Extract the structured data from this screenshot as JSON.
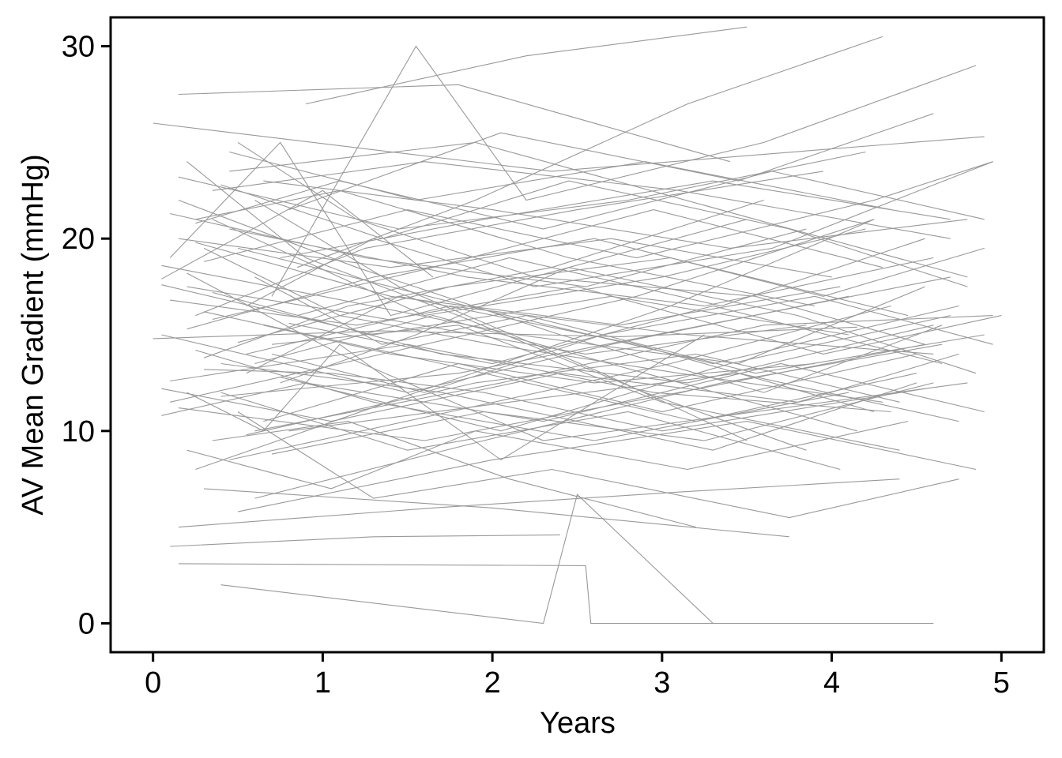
{
  "chart_data": {
    "type": "line",
    "title": "",
    "xlabel": "Years",
    "ylabel": "AV Mean Gradient (mmHg)",
    "xlim": [
      -0.25,
      5.25
    ],
    "ylim": [
      -1.5,
      31.5
    ],
    "x_ticks": [
      0,
      1,
      2,
      3,
      4,
      5
    ],
    "x_tick_labels": [
      "0",
      "1",
      "2",
      "3",
      "4",
      "5"
    ],
    "y_ticks": [
      0,
      10,
      20,
      30
    ],
    "y_tick_labels": [
      "0",
      "10",
      "20",
      "30"
    ],
    "grid": false,
    "legend": "none",
    "line_color": "#999999",
    "series": [
      {
        "x": [
          0.05,
          1.0,
          1.65
        ],
        "y": [
          17.9,
          22.5,
          18.0
        ]
      },
      {
        "x": [
          0.0,
          2.35,
          4.9
        ],
        "y": [
          26.0,
          23.5,
          25.3
        ]
      },
      {
        "x": [
          0.1,
          1.3,
          2.4
        ],
        "y": [
          4.0,
          4.5,
          4.6
        ]
      },
      {
        "x": [
          0.4,
          2.3,
          2.5,
          3.3
        ],
        "y": [
          2.0,
          0.0,
          6.7,
          0.0
        ]
      },
      {
        "x": [
          0.15,
          2.55,
          2.58,
          4.6
        ],
        "y": [
          3.1,
          3.0,
          0.0,
          0.0
        ]
      },
      {
        "x": [
          0.1,
          0.75,
          1.4,
          3.5
        ],
        "y": [
          19.0,
          25.0,
          16.0,
          21.0
        ]
      },
      {
        "x": [
          0.2,
          1.1,
          2.3,
          4.8
        ],
        "y": [
          18.2,
          14.0,
          9.5,
          12.5
        ]
      },
      {
        "x": [
          0.3,
          1.05,
          1.95,
          3.0,
          4.55
        ],
        "y": [
          13.2,
          13.0,
          12.0,
          10.0,
          12.2
        ]
      },
      {
        "x": [
          0.05,
          1.5,
          2.7,
          4.1
        ],
        "y": [
          15.0,
          12.0,
          14.5,
          17.0
        ]
      },
      {
        "x": [
          0.2,
          0.65,
          1.1,
          2.05,
          3.25
        ],
        "y": [
          12.0,
          10.0,
          14.5,
          8.5,
          15.0
        ]
      },
      {
        "x": [
          0.15,
          1.2,
          2.4,
          3.6,
          4.65
        ],
        "y": [
          22.0,
          18.5,
          15.0,
          12.0,
          15.5
        ]
      },
      {
        "x": [
          0.25,
          1.55,
          3.05,
          4.25
        ],
        "y": [
          8.0,
          12.0,
          16.5,
          21.0
        ]
      },
      {
        "x": [
          0.35,
          1.6,
          3.0,
          4.2
        ],
        "y": [
          21.0,
          16.0,
          18.0,
          20.5
        ]
      },
      {
        "x": [
          0.5,
          1.3,
          2.35,
          3.75,
          4.75
        ],
        "y": [
          11.0,
          6.5,
          8.0,
          5.5,
          7.5
        ]
      },
      {
        "x": [
          0.6,
          1.45,
          2.65,
          3.5
        ],
        "y": [
          22.0,
          17.5,
          13.0,
          9.5
        ]
      },
      {
        "x": [
          0.45,
          1.9,
          3.55,
          4.8
        ],
        "y": [
          23.5,
          25.0,
          21.0,
          18.0
        ]
      },
      {
        "x": [
          0.15,
          1.8,
          3.4
        ],
        "y": [
          27.5,
          28.0,
          24.0
        ]
      },
      {
        "x": [
          0.3,
          1.1,
          2.0,
          3.1,
          4.3
        ],
        "y": [
          19.5,
          16.0,
          14.5,
          13.0,
          11.5
        ]
      },
      {
        "x": [
          0.55,
          1.75,
          3.15,
          4.6
        ],
        "y": [
          14.0,
          16.5,
          15.0,
          14.0
        ]
      },
      {
        "x": [
          0.1,
          1.35,
          2.85,
          4.25
        ],
        "y": [
          11.5,
          14.0,
          17.0,
          21.0
        ]
      },
      {
        "x": [
          0.7,
          1.55,
          2.2,
          3.6,
          4.85
        ],
        "y": [
          17.0,
          30.0,
          22.0,
          25.0,
          29.0
        ]
      },
      {
        "x": [
          0.25,
          1.25,
          2.5,
          3.95
        ],
        "y": [
          16.0,
          19.5,
          21.5,
          23.5
        ]
      },
      {
        "x": [
          0.4,
          1.7,
          3.3,
          4.5
        ],
        "y": [
          13.5,
          12.0,
          9.0,
          12.5
        ]
      },
      {
        "x": [
          0.6,
          2.05,
          3.6,
          4.95
        ],
        "y": [
          10.0,
          12.5,
          15.5,
          16.0
        ]
      },
      {
        "x": [
          0.35,
          1.15,
          2.1,
          3.2
        ],
        "y": [
          9.5,
          10.5,
          7.5,
          5.0
        ]
      },
      {
        "x": [
          0.0,
          1.35,
          2.75,
          4.15
        ],
        "y": [
          14.8,
          15.2,
          14.9,
          15.4
        ]
      },
      {
        "x": [
          0.75,
          1.95,
          3.3,
          4.7
        ],
        "y": [
          19.0,
          21.0,
          23.0,
          21.0
        ]
      },
      {
        "x": [
          0.2,
          0.9,
          1.8,
          2.9,
          3.85
        ],
        "y": [
          24.0,
          19.0,
          16.0,
          12.0,
          9.0
        ]
      },
      {
        "x": [
          0.5,
          1.2,
          2.25,
          3.55,
          4.55
        ],
        "y": [
          25.0,
          21.0,
          18.0,
          17.0,
          14.5
        ]
      },
      {
        "x": [
          0.15,
          1.65,
          3.05,
          4.4
        ],
        "y": [
          5.0,
          6.0,
          6.8,
          7.5
        ]
      },
      {
        "x": [
          0.3,
          2.0,
          3.75
        ],
        "y": [
          7.0,
          6.0,
          4.5
        ]
      },
      {
        "x": [
          0.05,
          1.0,
          2.15,
          3.45,
          4.55
        ],
        "y": [
          18.6,
          17.0,
          15.0,
          13.5,
          17.5
        ]
      },
      {
        "x": [
          0.65,
          1.4,
          2.6,
          3.9
        ],
        "y": [
          15.5,
          14.0,
          12.5,
          13.5
        ]
      },
      {
        "x": [
          0.45,
          1.85,
          3.25,
          4.6
        ],
        "y": [
          20.5,
          18.0,
          16.5,
          19.0
        ]
      },
      {
        "x": [
          0.8,
          2.1,
          3.45,
          4.75
        ],
        "y": [
          10.0,
          11.5,
          13.0,
          10.5
        ]
      },
      {
        "x": [
          0.1,
          1.5,
          2.95,
          4.35
        ],
        "y": [
          12.6,
          14.5,
          12.0,
          11.0
        ]
      },
      {
        "x": [
          0.55,
          1.3,
          2.25,
          3.65,
          4.95
        ],
        "y": [
          16.5,
          20.0,
          17.5,
          19.5,
          24.0
        ]
      },
      {
        "x": [
          0.25,
          1.1,
          2.45,
          3.9
        ],
        "y": [
          21.0,
          22.5,
          19.0,
          16.5
        ]
      },
      {
        "x": [
          0.85,
          1.9,
          3.15,
          4.3
        ],
        "y": [
          18.5,
          22.0,
          27.0,
          30.5
        ]
      },
      {
        "x": [
          0.4,
          1.5,
          2.8,
          4.05
        ],
        "y": [
          12.0,
          9.0,
          11.0,
          8.0
        ]
      },
      {
        "x": [
          0.2,
          1.25,
          2.55,
          3.85
        ],
        "y": [
          17.5,
          16.0,
          14.0,
          15.5
        ]
      },
      {
        "x": [
          0.7,
          1.8,
          3.0,
          4.4
        ],
        "y": [
          14.5,
          15.5,
          11.5,
          9.0
        ]
      },
      {
        "x": [
          0.35,
          1.6,
          3.1,
          4.7
        ],
        "y": [
          22.5,
          24.0,
          22.5,
          20.0
        ]
      },
      {
        "x": [
          0.05,
          0.9,
          2.3,
          3.7,
          4.9
        ],
        "y": [
          10.8,
          12.5,
          10.5,
          13.5,
          11.0
        ]
      },
      {
        "x": [
          0.9,
          2.2,
          3.5
        ],
        "y": [
          27.0,
          29.5,
          31.0
        ]
      },
      {
        "x": [
          0.6,
          1.95,
          3.35,
          4.65
        ],
        "y": [
          6.5,
          9.5,
          12.5,
          14.5
        ]
      },
      {
        "x": [
          0.15,
          1.4,
          2.7,
          4.0
        ],
        "y": [
          20.0,
          18.5,
          20.0,
          18.0
        ]
      },
      {
        "x": [
          0.3,
          1.7,
          3.2,
          4.5
        ],
        "y": [
          16.2,
          13.5,
          10.5,
          13.0
        ]
      },
      {
        "x": [
          0.75,
          1.55,
          2.45,
          3.8,
          4.85
        ],
        "y": [
          12.5,
          15.0,
          18.5,
          16.0,
          13.0
        ]
      },
      {
        "x": [
          0.5,
          1.85,
          3.3,
          4.75
        ],
        "y": [
          19.5,
          16.5,
          13.5,
          16.5
        ]
      },
      {
        "x": [
          0.25,
          1.3,
          2.6,
          4.1
        ],
        "y": [
          14.2,
          11.5,
          9.5,
          12.0
        ]
      },
      {
        "x": [
          0.45,
          1.75,
          3.05,
          4.35
        ],
        "y": [
          8.5,
          11.0,
          13.5,
          16.5
        ]
      },
      {
        "x": [
          0.65,
          2.0,
          3.4,
          4.8
        ],
        "y": [
          23.0,
          21.5,
          19.5,
          21.0
        ]
      },
      {
        "x": [
          0.1,
          1.2,
          2.5,
          3.95,
          5.0
        ],
        "y": [
          16.8,
          15.5,
          17.5,
          14.0,
          16.0
        ]
      },
      {
        "x": [
          0.55,
          1.45,
          2.85,
          4.25
        ],
        "y": [
          13.0,
          17.0,
          14.5,
          11.0
        ]
      },
      {
        "x": [
          0.8,
          2.05,
          3.45,
          4.6
        ],
        "y": [
          21.5,
          25.5,
          23.0,
          26.5
        ]
      },
      {
        "x": [
          0.2,
          1.05,
          1.9,
          3.15,
          4.45
        ],
        "y": [
          9.0,
          7.0,
          10.0,
          8.0,
          10.5
        ]
      },
      {
        "x": [
          0.35,
          1.65,
          2.95,
          4.3
        ],
        "y": [
          15.8,
          18.5,
          21.5,
          18.5
        ]
      },
      {
        "x": [
          0.6,
          1.35,
          2.2,
          3.55,
          4.9
        ],
        "y": [
          18.0,
          14.5,
          16.0,
          13.0,
          15.0
        ]
      },
      {
        "x": [
          0.4,
          1.8,
          3.25,
          4.7
        ],
        "y": [
          11.8,
          13.0,
          15.5,
          18.0
        ]
      },
      {
        "x": [
          0.15,
          1.45,
          2.8,
          4.2
        ],
        "y": [
          23.2,
          20.5,
          22.0,
          24.5
        ]
      },
      {
        "x": [
          0.7,
          1.6,
          2.65,
          3.9,
          4.95
        ],
        "y": [
          14.0,
          12.0,
          15.0,
          17.0,
          14.5
        ]
      },
      {
        "x": [
          0.3,
          1.15,
          2.35,
          3.6
        ],
        "y": [
          13.8,
          16.5,
          18.5,
          22.0
        ]
      },
      {
        "x": [
          0.5,
          2.0,
          3.5,
          4.85
        ],
        "y": [
          5.8,
          8.5,
          10.5,
          8.0
        ]
      },
      {
        "x": [
          0.25,
          1.4,
          2.75,
          4.05
        ],
        "y": [
          19.8,
          17.0,
          15.5,
          17.5
        ]
      },
      {
        "x": [
          0.85,
          2.1,
          3.35,
          4.55
        ],
        "y": [
          16.0,
          19.0,
          16.5,
          20.0
        ]
      },
      {
        "x": [
          0.05,
          1.05,
          2.4,
          3.8,
          4.75
        ],
        "y": [
          12.2,
          10.5,
          13.0,
          11.5,
          14.0
        ]
      },
      {
        "x": [
          0.45,
          1.55,
          2.9,
          4.35
        ],
        "y": [
          24.5,
          22.0,
          24.0,
          21.5
        ]
      },
      {
        "x": [
          0.65,
          1.8,
          3.0,
          4.5
        ],
        "y": [
          10.5,
          13.5,
          11.0,
          14.0
        ]
      },
      {
        "x": [
          0.2,
          1.3,
          2.6,
          3.95,
          4.9
        ],
        "y": [
          15.3,
          18.0,
          20.0,
          17.0,
          19.5
        ]
      },
      {
        "x": [
          0.35,
          1.7,
          3.15,
          4.6
        ],
        "y": [
          17.2,
          14.0,
          12.5,
          15.5
        ]
      },
      {
        "x": [
          0.75,
          2.05,
          3.4,
          4.7
        ],
        "y": [
          12.8,
          10.0,
          13.5,
          16.0
        ]
      },
      {
        "x": [
          0.1,
          1.25,
          2.55,
          3.85
        ],
        "y": [
          21.3,
          19.0,
          17.5,
          20.5
        ]
      },
      {
        "x": [
          0.55,
          1.9,
          3.2,
          4.4
        ],
        "y": [
          9.8,
          12.5,
          14.0,
          11.5
        ]
      },
      {
        "x": [
          0.3,
          1.5,
          2.85,
          4.25,
          4.95
        ],
        "y": [
          18.8,
          21.5,
          19.0,
          22.0,
          24.0
        ]
      },
      {
        "x": [
          0.6,
          1.65,
          2.9,
          4.15
        ],
        "y": [
          13.5,
          16.0,
          13.0,
          10.0
        ]
      },
      {
        "x": [
          0.4,
          1.35,
          2.45,
          3.75,
          4.8
        ],
        "y": [
          22.8,
          20.0,
          23.0,
          20.5,
          17.5
        ]
      },
      {
        "x": [
          0.15,
          1.6,
          3.1,
          4.55
        ],
        "y": [
          11.2,
          9.5,
          12.0,
          14.5
        ]
      },
      {
        "x": [
          0.8,
          2.0,
          3.3,
          4.65
        ],
        "y": [
          15.6,
          13.5,
          16.5,
          13.5
        ]
      },
      {
        "x": [
          0.25,
          1.1,
          2.3,
          3.65,
          4.9
        ],
        "y": [
          20.8,
          23.0,
          20.5,
          23.5,
          21.0
        ]
      },
      {
        "x": [
          0.5,
          1.75,
          3.05,
          4.45
        ],
        "y": [
          14.6,
          17.5,
          19.0,
          16.0
        ]
      },
      {
        "x": [
          0.7,
          1.95,
          3.25,
          4.6
        ],
        "y": [
          8.8,
          11.0,
          9.5,
          12.5
        ]
      },
      {
        "x": [
          0.05,
          1.3,
          2.7,
          4.1
        ],
        "y": [
          17.6,
          15.0,
          17.0,
          15.0
        ]
      }
    ]
  }
}
